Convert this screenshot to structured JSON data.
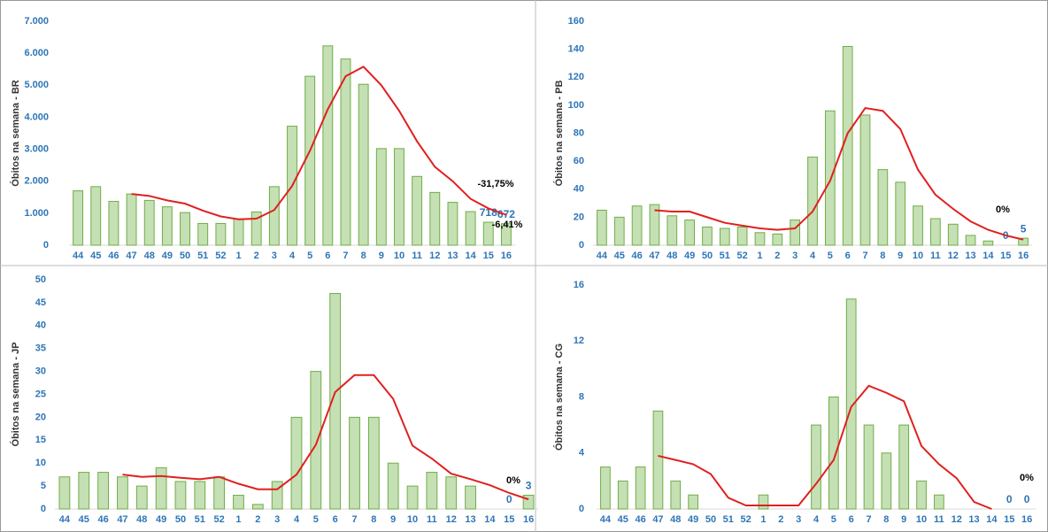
{
  "chart_data": [
    {
      "type": "bar",
      "y_label": "Óbitos na semana - BR",
      "categories": [
        "44",
        "45",
        "46",
        "47",
        "48",
        "49",
        "50",
        "51",
        "52",
        "1",
        "2",
        "3",
        "4",
        "5",
        "6",
        "7",
        "8",
        "9",
        "10",
        "11",
        "12",
        "13",
        "14",
        "15",
        "16"
      ],
      "ylim": [
        0,
        7000
      ],
      "yticks": [
        0,
        {
          "value": 1000,
          "label": "1.000"
        },
        {
          "value": 2000,
          "label": "2.000"
        },
        {
          "value": 3000,
          "label": "3.000"
        },
        {
          "value": 4000,
          "label": "4.000"
        },
        {
          "value": 5000,
          "label": "5.000"
        },
        {
          "value": 6000,
          "label": "6.000"
        },
        {
          "value": 7000,
          "label": "7.000"
        }
      ],
      "series": [
        {
          "type": "bar",
          "color": "#c5e0b4",
          "values": [
            1700,
            1830,
            1370,
            1600,
            1400,
            1200,
            1020,
            680,
            680,
            820,
            1040,
            1830,
            3720,
            5280,
            6230,
            5820,
            5030,
            3020,
            3020,
            2150,
            1650,
            1340,
            1050,
            718,
            672
          ],
          "value_labels": [
            null,
            null,
            null,
            null,
            null,
            null,
            null,
            null,
            null,
            null,
            null,
            null,
            null,
            null,
            null,
            null,
            null,
            null,
            null,
            null,
            null,
            null,
            null,
            "718",
            "672"
          ]
        },
        {
          "type": "line",
          "color": "#e02020",
          "values": [
            null,
            null,
            null,
            1600,
            1540,
            1400,
            1300,
            1080,
            900,
            810,
            830,
            1100,
            1850,
            2950,
            4250,
            5280,
            5580,
            5000,
            4200,
            3250,
            2450,
            2000,
            1450,
            1150,
            950
          ]
        }
      ],
      "annotations": [
        "-31,75%",
        "-6,41%"
      ]
    },
    {
      "type": "bar",
      "y_label": "Óbitos na semana - PB",
      "categories": [
        "44",
        "45",
        "46",
        "47",
        "48",
        "49",
        "50",
        "51",
        "52",
        "1",
        "2",
        "3",
        "4",
        "5",
        "6",
        "7",
        "8",
        "9",
        "10",
        "11",
        "12",
        "13",
        "14",
        "15",
        "16"
      ],
      "ylim": [
        0,
        160
      ],
      "yticks": [
        0,
        20,
        40,
        60,
        80,
        100,
        120,
        140,
        160
      ],
      "series": [
        {
          "type": "bar",
          "color": "#c5e0b4",
          "values": [
            25,
            20,
            28,
            29,
            21,
            18,
            13,
            12,
            13,
            9,
            8,
            18,
            63,
            96,
            142,
            93,
            54,
            45,
            28,
            19,
            15,
            7,
            3,
            0,
            5
          ],
          "value_labels": [
            null,
            null,
            null,
            null,
            null,
            null,
            null,
            null,
            null,
            null,
            null,
            null,
            null,
            null,
            null,
            null,
            null,
            null,
            null,
            null,
            null,
            null,
            null,
            "0",
            "5"
          ]
        },
        {
          "type": "line",
          "color": "#e02020",
          "values": [
            null,
            null,
            null,
            25,
            24,
            24,
            20,
            16,
            14,
            12,
            11,
            12,
            24,
            46,
            80,
            98,
            96,
            83,
            54,
            36,
            26,
            17,
            11,
            7,
            4
          ]
        }
      ],
      "annotations": [
        "0%"
      ]
    },
    {
      "type": "bar",
      "y_label": "Óbitos na semana - JP",
      "categories": [
        "44",
        "45",
        "46",
        "47",
        "48",
        "49",
        "50",
        "51",
        "52",
        "1",
        "2",
        "3",
        "4",
        "5",
        "6",
        "7",
        "8",
        "9",
        "10",
        "11",
        "12",
        "13",
        "14",
        "15",
        "16"
      ],
      "ylim": [
        0,
        50
      ],
      "yticks": [
        0,
        5,
        10,
        15,
        20,
        25,
        30,
        35,
        40,
        45,
        50
      ],
      "series": [
        {
          "type": "bar",
          "color": "#c5e0b4",
          "values": [
            7,
            8,
            8,
            7,
            5,
            9,
            6,
            6,
            7,
            3,
            1,
            6,
            20,
            30,
            47,
            20,
            20,
            10,
            5,
            8,
            7,
            5,
            0,
            0,
            3
          ],
          "value_labels": [
            null,
            null,
            null,
            null,
            null,
            null,
            null,
            null,
            null,
            null,
            null,
            null,
            null,
            null,
            null,
            null,
            null,
            null,
            null,
            null,
            null,
            null,
            null,
            "0",
            "3"
          ]
        },
        {
          "type": "line",
          "color": "#e02020",
          "values": [
            null,
            null,
            null,
            7.5,
            7,
            7.2,
            6.8,
            6.5,
            7,
            5.5,
            4.3,
            4.3,
            7.5,
            14,
            25.5,
            29.2,
            29.2,
            24,
            13.8,
            11,
            7.7,
            6.5,
            5.2,
            3.5,
            2.1
          ]
        }
      ],
      "annotations": [
        "0%"
      ]
    },
    {
      "type": "bar",
      "y_label": "Óbitos na semana - CG",
      "categories": [
        "44",
        "45",
        "46",
        "47",
        "48",
        "49",
        "50",
        "51",
        "52",
        "1",
        "2",
        "3",
        "4",
        "5",
        "6",
        "7",
        "8",
        "9",
        "10",
        "11",
        "12",
        "13",
        "14",
        "15",
        "16"
      ],
      "ylim": [
        0,
        16
      ],
      "yticks": [
        0,
        4,
        8,
        12,
        16
      ],
      "series": [
        {
          "type": "bar",
          "color": "#c5e0b4",
          "values": [
            3,
            2,
            3,
            7,
            2,
            1,
            0,
            0,
            0,
            1,
            0,
            0,
            6,
            8,
            15,
            6,
            4,
            6,
            2,
            1,
            0,
            0,
            0,
            0,
            0
          ],
          "value_labels": [
            null,
            null,
            null,
            null,
            null,
            null,
            null,
            null,
            null,
            null,
            null,
            null,
            null,
            null,
            null,
            null,
            null,
            null,
            null,
            null,
            null,
            null,
            null,
            "0",
            "0"
          ]
        },
        {
          "type": "line",
          "color": "#e02020",
          "values": [
            null,
            null,
            null,
            3.8,
            3.5,
            3.2,
            2.5,
            0.8,
            0.25,
            0.25,
            0.25,
            0.25,
            1.8,
            3.5,
            7.3,
            8.8,
            8.3,
            7.7,
            4.5,
            3.2,
            2.2,
            0.5,
            0,
            null,
            null
          ]
        }
      ],
      "annotations": [
        "0%"
      ]
    }
  ]
}
